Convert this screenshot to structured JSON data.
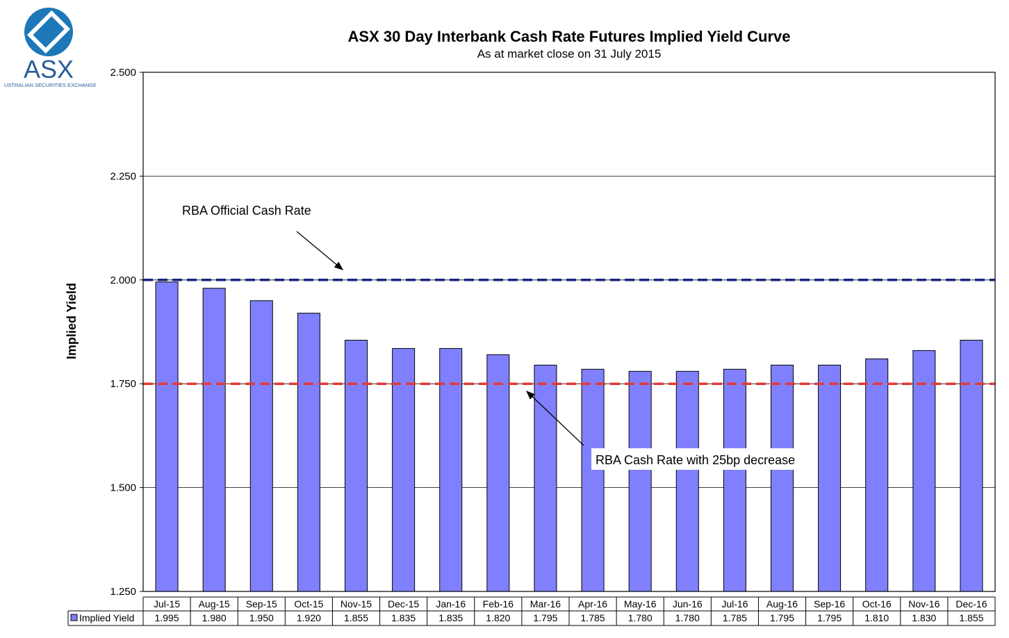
{
  "header": {
    "title": "ASX 30 Day Interbank Cash Rate Futures Implied Yield Curve",
    "subtitle": "As at market close on 31 July 2015",
    "logo_text": "ASX",
    "logo_subtext": "AUSTRALIAN SECURITIES EXCHANGE"
  },
  "chart_data": {
    "type": "bar",
    "title": "ASX 30 Day Interbank Cash Rate Futures Implied Yield Curve",
    "subtitle": "As at market close on 31 July 2015",
    "ylabel": "Implied Yield",
    "xlabel": "",
    "ylim": [
      1.25,
      2.5
    ],
    "yticks": [
      "2.500",
      "2.250",
      "2.000",
      "1.750",
      "1.500",
      "1.250"
    ],
    "categories": [
      "Jul-15",
      "Aug-15",
      "Sep-15",
      "Oct-15",
      "Nov-15",
      "Dec-15",
      "Jan-16",
      "Feb-16",
      "Mar-16",
      "Apr-16",
      "May-16",
      "Jun-16",
      "Jul-16",
      "Aug-16",
      "Sep-16",
      "Oct-16",
      "Nov-16",
      "Dec-16"
    ],
    "series": [
      {
        "name": "Implied Yield",
        "color": "#8080ff",
        "values": [
          1.995,
          1.98,
          1.95,
          1.92,
          1.855,
          1.835,
          1.835,
          1.82,
          1.795,
          1.785,
          1.78,
          1.78,
          1.785,
          1.795,
          1.795,
          1.81,
          1.83,
          1.855
        ],
        "labels": [
          "1.995",
          "1.980",
          "1.950",
          "1.920",
          "1.855",
          "1.835",
          "1.835",
          "1.820",
          "1.795",
          "1.785",
          "1.780",
          "1.780",
          "1.785",
          "1.795",
          "1.795",
          "1.810",
          "1.830",
          "1.855"
        ]
      }
    ],
    "reference_lines": [
      {
        "label": "RBA Official Cash Rate",
        "value": 2.0,
        "color": "#1a237e",
        "style": "dashed"
      },
      {
        "label": "RBA Cash Rate with 25bp decrease",
        "value": 1.75,
        "color": "#e53935",
        "style": "dashed"
      }
    ],
    "grid": true,
    "legend": "data table below chart"
  }
}
